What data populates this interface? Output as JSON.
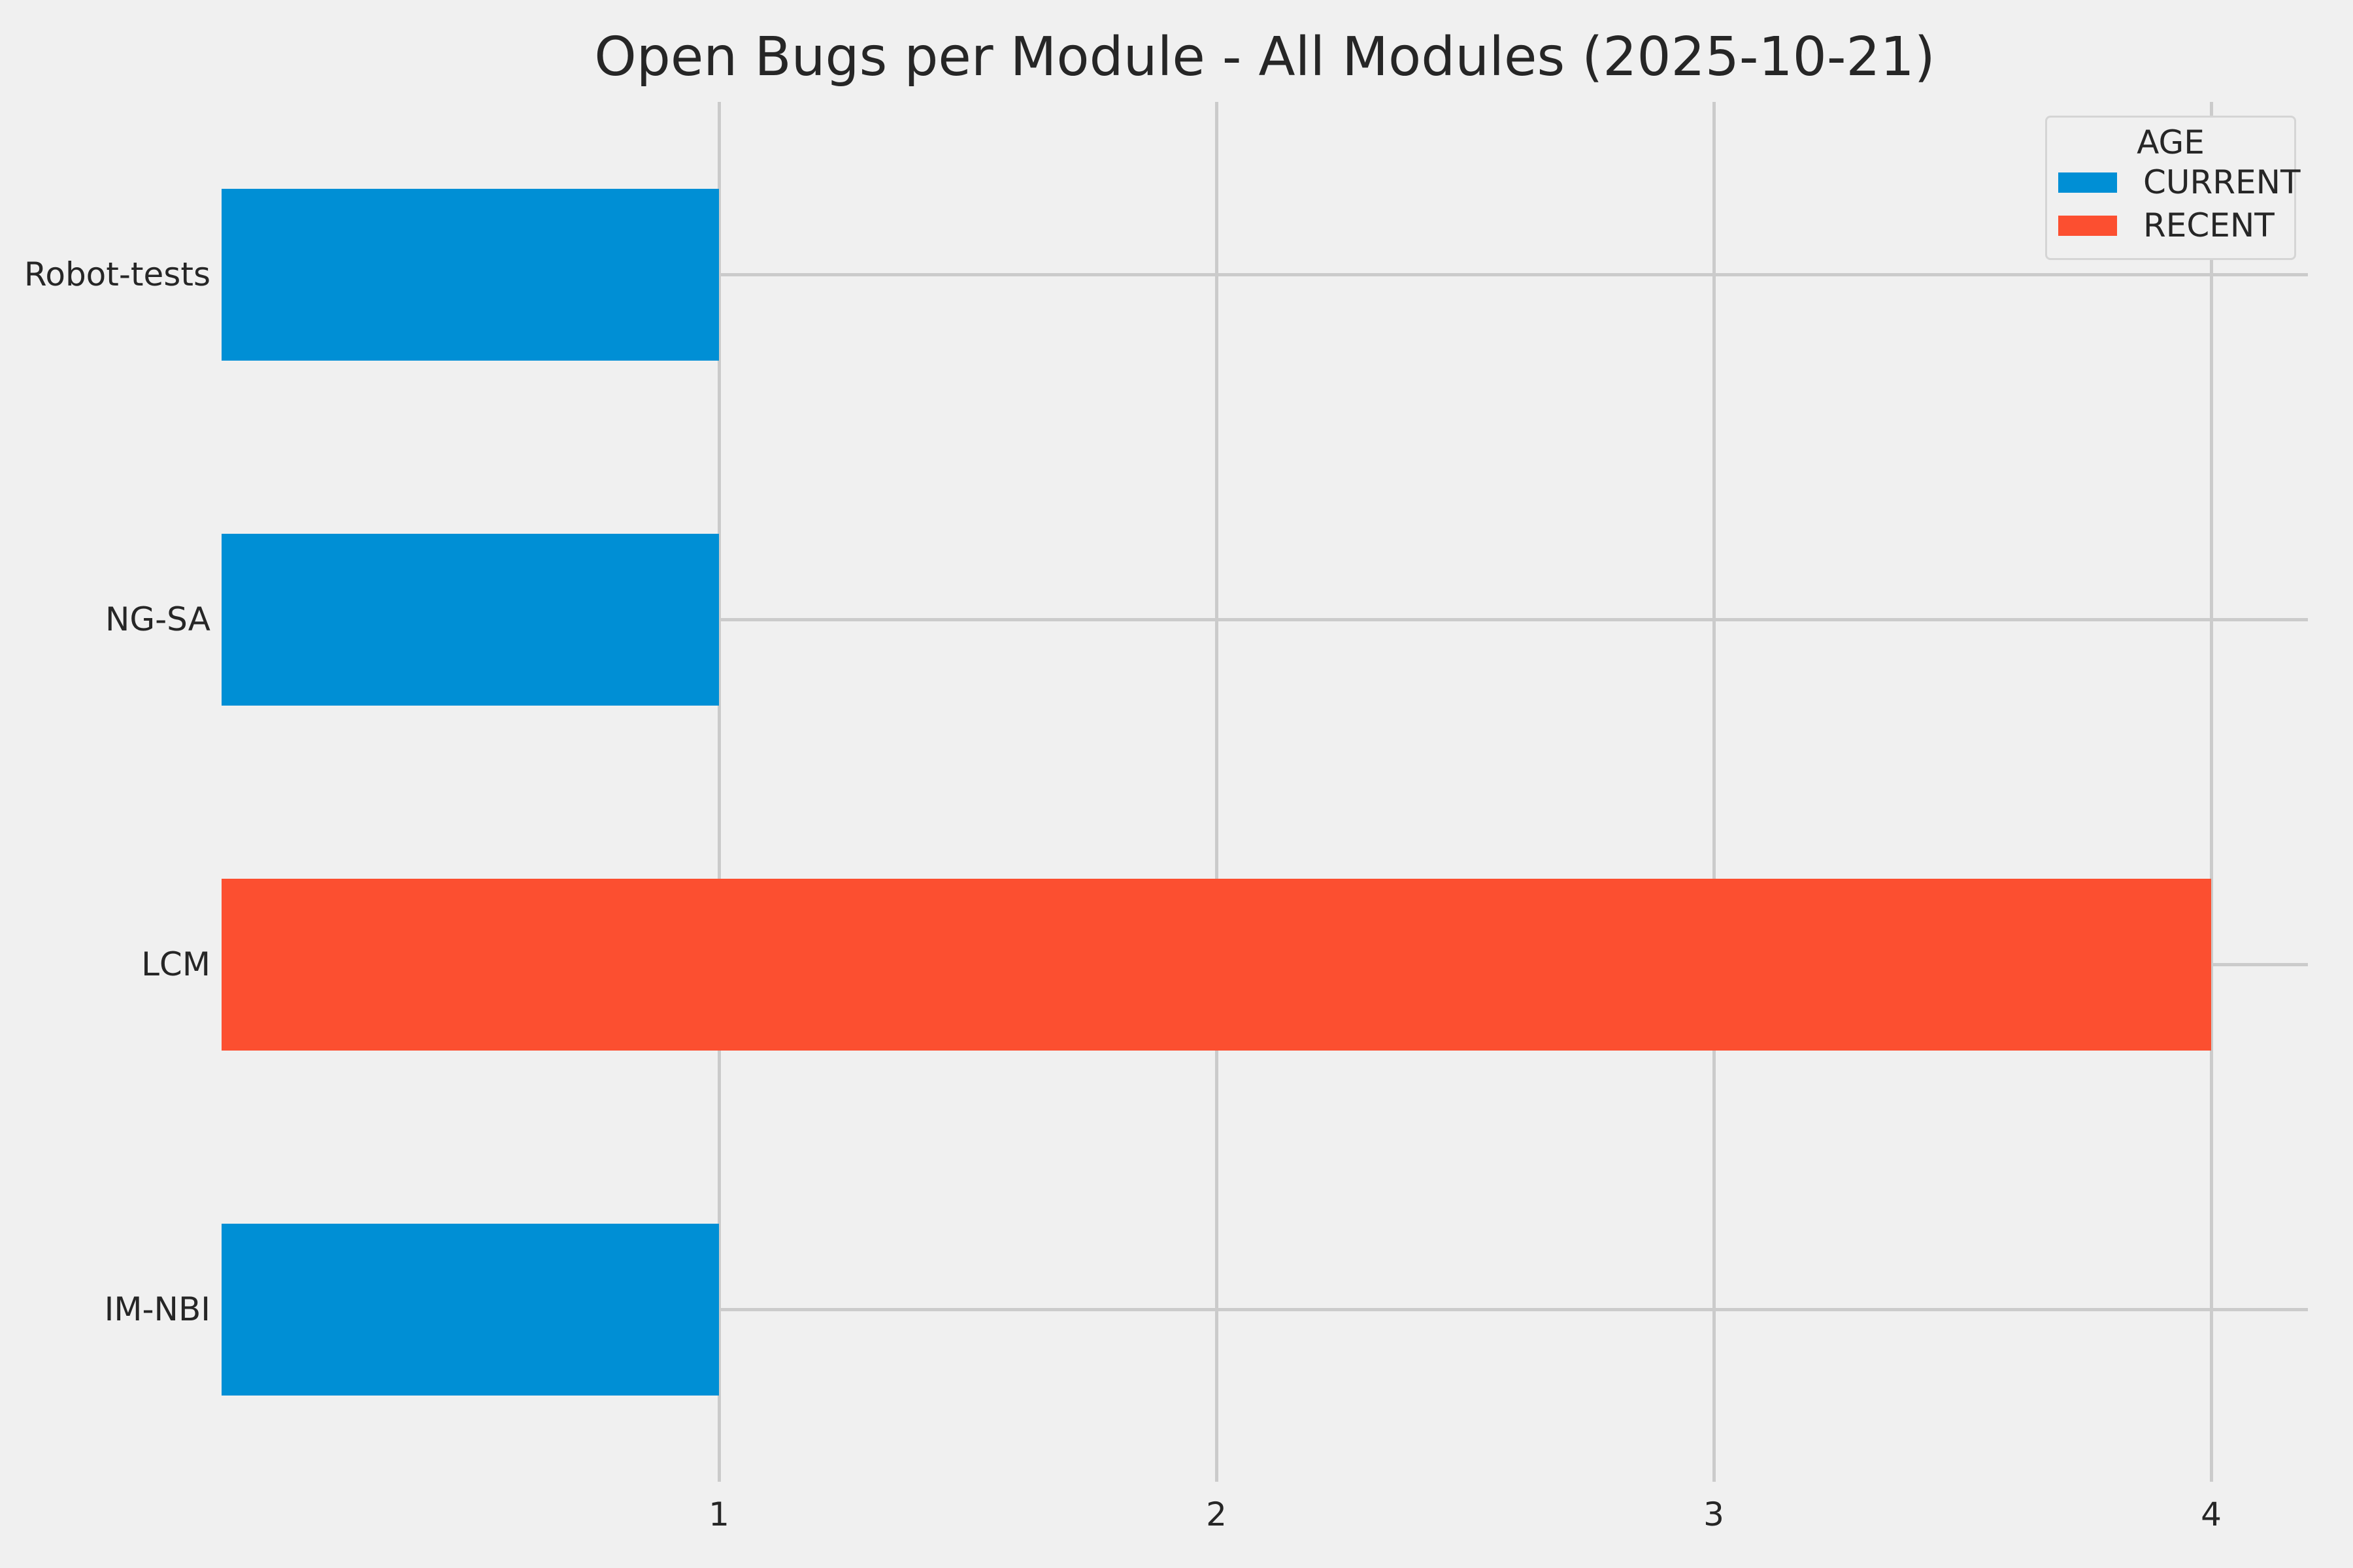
{
  "chart_data": {
    "type": "bar",
    "orientation": "horizontal",
    "title": "Open Bugs per Module - All Modules (2025-10-21)",
    "categories": [
      "Robot-tests",
      "NG-SA",
      "LCM",
      "IM-NBI"
    ],
    "values": [
      1,
      1,
      4,
      1
    ],
    "rows": [
      {
        "category": "Robot-tests",
        "value": 1,
        "series": "CURRENT"
      },
      {
        "category": "NG-SA",
        "value": 1,
        "series": "CURRENT"
      },
      {
        "category": "LCM",
        "value": 4,
        "series": "RECENT"
      },
      {
        "category": "IM-NBI",
        "value": 1,
        "series": "CURRENT"
      }
    ],
    "xlabel": "",
    "ylabel": "",
    "xticks": [
      1,
      2,
      3,
      4
    ],
    "xlim": [
      0,
      4.19
    ],
    "grid": true,
    "legend": {
      "title": "AGE",
      "position": "upper-right",
      "entries": [
        {
          "label": "CURRENT",
          "color": "#008fd5"
        },
        {
          "label": "RECENT",
          "color": "#fc4f30"
        }
      ]
    },
    "colors": {
      "CURRENT": "#008fd5",
      "RECENT": "#fc4f30"
    },
    "style": {
      "background": "#f0f0f0",
      "gridline_color": "#cbcbcb",
      "text_color": "#262626"
    }
  }
}
